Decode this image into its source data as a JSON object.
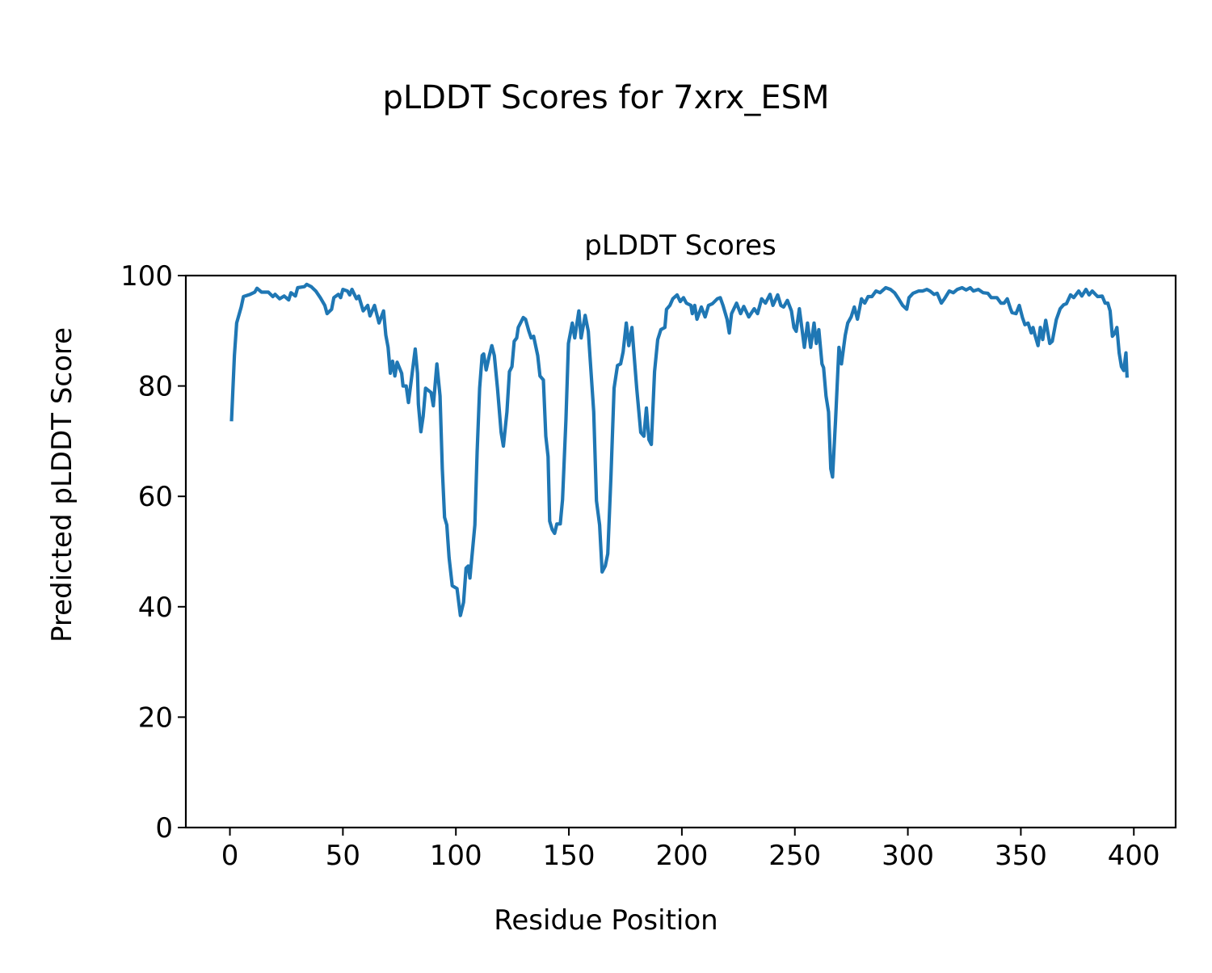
{
  "figure_title": "pLDDT Scores for 7xrx_ESM",
  "chart_data": {
    "type": "line",
    "title": "pLDDT Scores",
    "xlabel": "Residue Position",
    "ylabel": "Predicted pLDDT Score",
    "xlim": [
      -19.5,
      418.5
    ],
    "ylim": [
      0,
      100
    ],
    "xticks": [
      0,
      50,
      100,
      150,
      200,
      250,
      300,
      350,
      400
    ],
    "yticks": [
      0,
      20,
      40,
      60,
      80,
      100
    ],
    "grid": false,
    "series": [
      {
        "name": "pLDDT",
        "color": "#1f77b4",
        "points": [
          [
            0.7,
            73.6
          ],
          [
            2,
            85.5
          ],
          [
            3,
            91.4
          ],
          [
            5,
            94.3
          ],
          [
            6,
            96.2
          ],
          [
            9,
            96.6
          ],
          [
            11,
            97
          ],
          [
            12,
            97.7
          ],
          [
            14,
            97
          ],
          [
            17,
            97
          ],
          [
            19,
            96.2
          ],
          [
            20,
            96.6
          ],
          [
            22,
            95.8
          ],
          [
            24,
            96.3
          ],
          [
            26,
            95.6
          ],
          [
            27,
            96.9
          ],
          [
            29,
            96.3
          ],
          [
            30,
            97.8
          ],
          [
            33,
            98
          ],
          [
            34,
            98.4
          ],
          [
            36,
            98
          ],
          [
            38,
            97.2
          ],
          [
            40,
            96
          ],
          [
            42,
            94.6
          ],
          [
            43,
            93.1
          ],
          [
            45,
            93.9
          ],
          [
            46,
            96
          ],
          [
            48,
            96.6
          ],
          [
            49,
            96
          ],
          [
            50,
            97.5
          ],
          [
            52,
            97.2
          ],
          [
            53,
            96.5
          ],
          [
            54,
            97.5
          ],
          [
            56,
            95.8
          ],
          [
            57,
            96.3
          ],
          [
            59,
            93.6
          ],
          [
            61,
            94.6
          ],
          [
            62,
            92.7
          ],
          [
            64,
            94.6
          ],
          [
            66,
            91.4
          ],
          [
            68,
            93.6
          ],
          [
            69,
            89.2
          ],
          [
            70,
            87
          ],
          [
            71,
            82.3
          ],
          [
            72,
            84.5
          ],
          [
            73,
            81.8
          ],
          [
            74,
            84.3
          ],
          [
            76,
            82.3
          ],
          [
            76.6,
            80
          ],
          [
            78,
            80
          ],
          [
            79,
            77
          ],
          [
            82,
            86.7
          ],
          [
            83,
            82.3
          ],
          [
            83.4,
            76.7
          ],
          [
            84.5,
            71.7
          ],
          [
            85.5,
            74.5
          ],
          [
            86.6,
            79.6
          ],
          [
            89,
            78.8
          ],
          [
            90,
            76.4
          ],
          [
            91.6,
            84
          ],
          [
            93,
            78.2
          ],
          [
            94,
            65
          ],
          [
            95,
            56.2
          ],
          [
            96,
            54.8
          ],
          [
            97,
            48.9
          ],
          [
            98.4,
            43.8
          ],
          [
            100.5,
            43.3
          ],
          [
            102,
            38.4
          ],
          [
            103.4,
            40.8
          ],
          [
            104.5,
            47
          ],
          [
            105.5,
            47.4
          ],
          [
            106.2,
            45.2
          ],
          [
            108.4,
            54.8
          ],
          [
            109.4,
            68
          ],
          [
            110.5,
            79.6
          ],
          [
            111.6,
            85.5
          ],
          [
            112.3,
            85.8
          ],
          [
            113.4,
            82.9
          ],
          [
            114.8,
            85.5
          ],
          [
            115.9,
            87.3
          ],
          [
            117,
            85.5
          ],
          [
            118.4,
            79.6
          ],
          [
            120,
            71.6
          ],
          [
            121,
            69.1
          ],
          [
            122.6,
            75.3
          ],
          [
            123.7,
            82.6
          ],
          [
            124.8,
            83.5
          ],
          [
            125.8,
            88.1
          ],
          [
            126.9,
            88.7
          ],
          [
            127.6,
            90.6
          ],
          [
            129.8,
            92.4
          ],
          [
            130.8,
            92.1
          ],
          [
            132.3,
            89.9
          ],
          [
            133.3,
            88.7
          ],
          [
            134.4,
            89
          ],
          [
            136.2,
            85.5
          ],
          [
            137.2,
            81.8
          ],
          [
            138.7,
            81.1
          ],
          [
            139.8,
            70.9
          ],
          [
            140.8,
            67.2
          ],
          [
            141.5,
            55.5
          ],
          [
            142.6,
            54
          ],
          [
            143.7,
            53.3
          ],
          [
            144.7,
            55
          ],
          [
            146.2,
            55
          ],
          [
            147.2,
            59.4
          ],
          [
            148.7,
            73.8
          ],
          [
            149.8,
            87.7
          ],
          [
            151.5,
            91.4
          ],
          [
            152.6,
            88.7
          ],
          [
            154.4,
            93.6
          ],
          [
            155.4,
            88.7
          ],
          [
            157.2,
            92.8
          ],
          [
            158.6,
            89.9
          ],
          [
            161,
            75.3
          ],
          [
            162.2,
            59.2
          ],
          [
            163.6,
            54.8
          ],
          [
            164.7,
            46.3
          ],
          [
            166.1,
            47.4
          ],
          [
            167.2,
            49.6
          ],
          [
            168.6,
            63.5
          ],
          [
            170,
            79.6
          ],
          [
            171.5,
            83.7
          ],
          [
            172.9,
            84
          ],
          [
            174,
            86.2
          ],
          [
            175.4,
            91.4
          ],
          [
            176.5,
            87.3
          ],
          [
            177.9,
            90.6
          ],
          [
            180,
            79.6
          ],
          [
            181.8,
            71.6
          ],
          [
            183.2,
            70.9
          ],
          [
            184.3,
            76
          ],
          [
            185.4,
            70.3
          ],
          [
            186.5,
            69.4
          ],
          [
            187.9,
            82.6
          ],
          [
            189.3,
            88.4
          ],
          [
            190.7,
            90.2
          ],
          [
            192.5,
            90.6
          ],
          [
            193.2,
            93.9
          ],
          [
            194.7,
            94.6
          ],
          [
            196,
            95.8
          ],
          [
            197.9,
            96.5
          ],
          [
            199.3,
            95.3
          ],
          [
            200.7,
            96
          ],
          [
            202,
            95
          ],
          [
            204,
            94.6
          ],
          [
            204.6,
            93.1
          ],
          [
            205.7,
            94.6
          ],
          [
            206.7,
            92.1
          ],
          [
            208.6,
            94.3
          ],
          [
            210.3,
            92.5
          ],
          [
            211.8,
            94.6
          ],
          [
            213.5,
            94.9
          ],
          [
            215.7,
            95.8
          ],
          [
            217,
            96
          ],
          [
            218.2,
            94.6
          ],
          [
            220,
            92.1
          ],
          [
            221,
            89.6
          ],
          [
            222,
            93.1
          ],
          [
            224.2,
            95
          ],
          [
            226,
            93.1
          ],
          [
            227.4,
            94.4
          ],
          [
            229.6,
            92.5
          ],
          [
            232,
            94
          ],
          [
            233.5,
            93.1
          ],
          [
            235.3,
            95.8
          ],
          [
            237,
            95
          ],
          [
            239,
            96.6
          ],
          [
            240.3,
            94.6
          ],
          [
            242.4,
            96.5
          ],
          [
            243.8,
            94.6
          ],
          [
            245,
            94.3
          ],
          [
            246.7,
            95.5
          ],
          [
            248.5,
            93.6
          ],
          [
            249.6,
            90.6
          ],
          [
            250.6,
            89.9
          ],
          [
            252,
            94
          ],
          [
            254.2,
            87
          ],
          [
            255.6,
            91.4
          ],
          [
            257,
            87
          ],
          [
            258.5,
            91.4
          ],
          [
            259.5,
            87.7
          ],
          [
            260.6,
            90.2
          ],
          [
            262,
            84
          ],
          [
            262.7,
            83.3
          ],
          [
            263.8,
            78.2
          ],
          [
            264.9,
            75.3
          ],
          [
            265.9,
            65
          ],
          [
            266.7,
            63.5
          ],
          [
            268,
            73.8
          ],
          [
            269.5,
            87
          ],
          [
            270.6,
            84
          ],
          [
            272.3,
            89.2
          ],
          [
            273.4,
            91.4
          ],
          [
            274.9,
            92.5
          ],
          [
            276.3,
            94.3
          ],
          [
            277.7,
            92.1
          ],
          [
            279.5,
            95.8
          ],
          [
            280.9,
            95
          ],
          [
            282.4,
            96.2
          ],
          [
            284.1,
            96.2
          ],
          [
            285.9,
            97.2
          ],
          [
            287.7,
            96.9
          ],
          [
            290.2,
            97.8
          ],
          [
            292.3,
            97.5
          ],
          [
            294.1,
            96.9
          ],
          [
            295.9,
            95.8
          ],
          [
            297.7,
            94.6
          ],
          [
            299.5,
            93.9
          ],
          [
            300.5,
            96
          ],
          [
            302.3,
            96.8
          ],
          [
            304.8,
            97.2
          ],
          [
            306.6,
            97.2
          ],
          [
            308.4,
            97.5
          ],
          [
            309.8,
            97.2
          ],
          [
            311.6,
            96.6
          ],
          [
            313,
            96.8
          ],
          [
            314.8,
            95
          ],
          [
            316.2,
            95.8
          ],
          [
            318.3,
            97.2
          ],
          [
            320.1,
            96.9
          ],
          [
            321.9,
            97.5
          ],
          [
            324,
            97.8
          ],
          [
            325.8,
            97.4
          ],
          [
            327.6,
            97.8
          ],
          [
            329,
            97.2
          ],
          [
            331.2,
            97.5
          ],
          [
            333.3,
            96.9
          ],
          [
            335.4,
            96.8
          ],
          [
            336.9,
            96
          ],
          [
            339.4,
            96
          ],
          [
            341.2,
            95
          ],
          [
            342.6,
            95
          ],
          [
            344,
            95.8
          ],
          [
            345.4,
            94
          ],
          [
            346.1,
            93.3
          ],
          [
            347.9,
            93.1
          ],
          [
            349.3,
            94.6
          ],
          [
            350.7,
            92.4
          ],
          [
            351.8,
            91.1
          ],
          [
            353.2,
            91.4
          ],
          [
            354.6,
            89.6
          ],
          [
            355.4,
            90.6
          ],
          [
            356,
            89.6
          ],
          [
            357.6,
            87.3
          ],
          [
            358.6,
            90.6
          ],
          [
            359.7,
            88.4
          ],
          [
            361,
            91.9
          ],
          [
            362.8,
            87.7
          ],
          [
            363.9,
            88.1
          ],
          [
            365.7,
            92
          ],
          [
            367.4,
            94
          ],
          [
            368.9,
            94.7
          ],
          [
            370.2,
            94.9
          ],
          [
            372,
            96.5
          ],
          [
            373.4,
            96
          ],
          [
            375.6,
            97.2
          ],
          [
            377,
            96.3
          ],
          [
            378.8,
            97.5
          ],
          [
            380.2,
            96.5
          ],
          [
            381.6,
            97.2
          ],
          [
            383,
            96.6
          ],
          [
            384,
            96.2
          ],
          [
            386,
            96.3
          ],
          [
            387.3,
            95
          ],
          [
            388.5,
            95
          ],
          [
            389.5,
            93.6
          ],
          [
            390.5,
            89
          ],
          [
            391.5,
            89.5
          ],
          [
            392.5,
            90.6
          ],
          [
            393.5,
            86
          ],
          [
            394.5,
            83.5
          ],
          [
            395.5,
            82.8
          ],
          [
            396.5,
            86
          ],
          [
            397,
            81.5
          ]
        ]
      }
    ]
  }
}
